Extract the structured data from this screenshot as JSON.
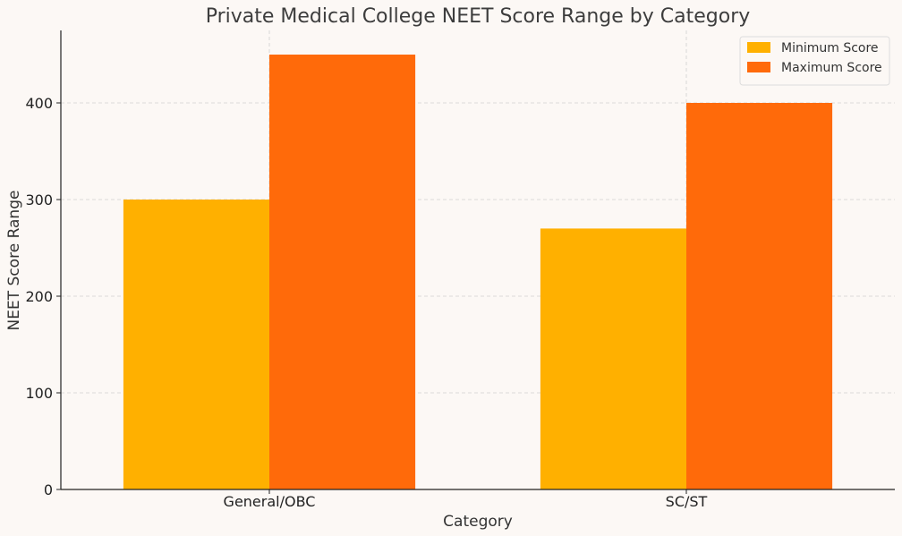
{
  "chart_data": {
    "type": "bar",
    "title": "Private Medical College NEET Score Range by Category",
    "xlabel": "Category",
    "ylabel": "NEET Score Range",
    "categories": [
      "General/OBC",
      "SC/ST"
    ],
    "series": [
      {
        "name": "Minimum Score",
        "values": [
          300,
          270
        ],
        "color": "#ffb000"
      },
      {
        "name": "Maximum Score",
        "values": [
          450,
          400
        ],
        "color": "#ff6a0a"
      }
    ],
    "ylim": [
      0,
      475
    ],
    "yticks": [
      0,
      100,
      200,
      300,
      400
    ],
    "grid": true,
    "legend_position": "top-right"
  }
}
